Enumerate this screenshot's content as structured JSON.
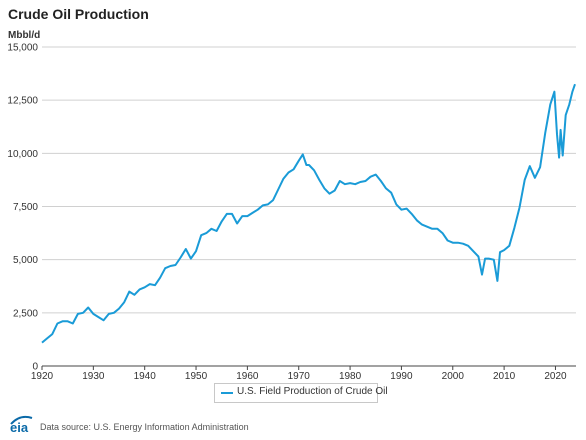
{
  "header": {
    "title": "Crude Oil Production",
    "unit": "Mbbl/d"
  },
  "footer": {
    "logo_text": "eia",
    "source": "Data source: U.S. Energy Information Administration"
  },
  "colors": {
    "series": "#1a9bd7",
    "grid": "#d0d0d0",
    "axis": "#444444",
    "logo": "#0b6aa8"
  },
  "chart_data": {
    "type": "line",
    "ylim": [
      0,
      15000
    ],
    "xlim": [
      1920,
      2024
    ],
    "yticks": [
      0,
      2500,
      5000,
      7500,
      10000,
      12500,
      15000
    ],
    "ytick_labels": [
      "0",
      "2,500",
      "5,000",
      "7,500",
      "10,000",
      "12,500",
      "15,000"
    ],
    "xticks": [
      1920,
      1930,
      1940,
      1950,
      1960,
      1970,
      1980,
      1990,
      2000,
      2010,
      2020
    ],
    "xtick_labels": [
      "1920",
      "1930",
      "1940",
      "1950",
      "1960",
      "1970",
      "1980",
      "1990",
      "2000",
      "2010",
      "2020"
    ],
    "grid": "horizontal",
    "legend_position": "bottom",
    "series": [
      {
        "name": "U.S. Field Production of Crude Oil",
        "points": [
          [
            1920.0,
            1100
          ],
          [
            1921.0,
            1300
          ],
          [
            1922.0,
            1500
          ],
          [
            1923.0,
            2000
          ],
          [
            1924.0,
            2100
          ],
          [
            1925.0,
            2100
          ],
          [
            1926.0,
            2000
          ],
          [
            1927.0,
            2450
          ],
          [
            1928.0,
            2500
          ],
          [
            1929.0,
            2750
          ],
          [
            1930.0,
            2450
          ],
          [
            1931.0,
            2300
          ],
          [
            1932.0,
            2150
          ],
          [
            1933.0,
            2450
          ],
          [
            1934.0,
            2500
          ],
          [
            1935.0,
            2700
          ],
          [
            1936.0,
            3000
          ],
          [
            1937.0,
            3500
          ],
          [
            1938.0,
            3350
          ],
          [
            1939.0,
            3600
          ],
          [
            1940.0,
            3700
          ],
          [
            1941.0,
            3850
          ],
          [
            1942.0,
            3800
          ],
          [
            1943.0,
            4150
          ],
          [
            1944.0,
            4600
          ],
          [
            1945.0,
            4700
          ],
          [
            1946.0,
            4750
          ],
          [
            1947.0,
            5100
          ],
          [
            1948.0,
            5500
          ],
          [
            1949.0,
            5050
          ],
          [
            1950.0,
            5400
          ],
          [
            1951.0,
            6150
          ],
          [
            1952.0,
            6250
          ],
          [
            1953.0,
            6450
          ],
          [
            1954.0,
            6350
          ],
          [
            1955.0,
            6800
          ],
          [
            1956.0,
            7150
          ],
          [
            1957.0,
            7150
          ],
          [
            1958.0,
            6700
          ],
          [
            1959.0,
            7050
          ],
          [
            1960.0,
            7050
          ],
          [
            1961.0,
            7200
          ],
          [
            1962.0,
            7350
          ],
          [
            1963.0,
            7550
          ],
          [
            1964.0,
            7600
          ],
          [
            1965.0,
            7800
          ],
          [
            1966.0,
            8300
          ],
          [
            1967.0,
            8800
          ],
          [
            1968.0,
            9100
          ],
          [
            1969.0,
            9250
          ],
          [
            1970.0,
            9650
          ],
          [
            1970.8,
            9950
          ],
          [
            1971.5,
            9450
          ],
          [
            1972.0,
            9450
          ],
          [
            1973.0,
            9200
          ],
          [
            1974.0,
            8750
          ],
          [
            1975.0,
            8350
          ],
          [
            1976.0,
            8100
          ],
          [
            1977.0,
            8250
          ],
          [
            1978.0,
            8700
          ],
          [
            1979.0,
            8550
          ],
          [
            1980.0,
            8600
          ],
          [
            1981.0,
            8550
          ],
          [
            1982.0,
            8650
          ],
          [
            1983.0,
            8700
          ],
          [
            1984.0,
            8900
          ],
          [
            1985.0,
            9000
          ],
          [
            1986.0,
            8700
          ],
          [
            1987.0,
            8350
          ],
          [
            1988.0,
            8150
          ],
          [
            1989.0,
            7600
          ],
          [
            1990.0,
            7350
          ],
          [
            1991.0,
            7400
          ],
          [
            1992.0,
            7150
          ],
          [
            1993.0,
            6850
          ],
          [
            1994.0,
            6650
          ],
          [
            1995.0,
            6550
          ],
          [
            1996.0,
            6450
          ],
          [
            1997.0,
            6450
          ],
          [
            1998.0,
            6250
          ],
          [
            1999.0,
            5900
          ],
          [
            2000.0,
            5800
          ],
          [
            2001.0,
            5800
          ],
          [
            2002.0,
            5750
          ],
          [
            2003.0,
            5650
          ],
          [
            2004.0,
            5400
          ],
          [
            2005.0,
            5150
          ],
          [
            2005.7,
            4300
          ],
          [
            2006.3,
            5050
          ],
          [
            2007.0,
            5050
          ],
          [
            2008.0,
            5000
          ],
          [
            2008.7,
            4000
          ],
          [
            2009.2,
            5350
          ],
          [
            2010.0,
            5450
          ],
          [
            2011.0,
            5650
          ],
          [
            2012.0,
            6500
          ],
          [
            2013.0,
            7450
          ],
          [
            2014.0,
            8750
          ],
          [
            2015.0,
            9400
          ],
          [
            2016.0,
            8850
          ],
          [
            2017.0,
            9350
          ],
          [
            2018.0,
            10950
          ],
          [
            2019.0,
            12300
          ],
          [
            2019.8,
            12900
          ],
          [
            2020.3,
            10900
          ],
          [
            2020.7,
            9800
          ],
          [
            2021.0,
            11100
          ],
          [
            2021.4,
            9900
          ],
          [
            2022.0,
            11800
          ],
          [
            2022.7,
            12300
          ],
          [
            2023.3,
            12900
          ],
          [
            2023.8,
            13250
          ]
        ]
      }
    ]
  }
}
